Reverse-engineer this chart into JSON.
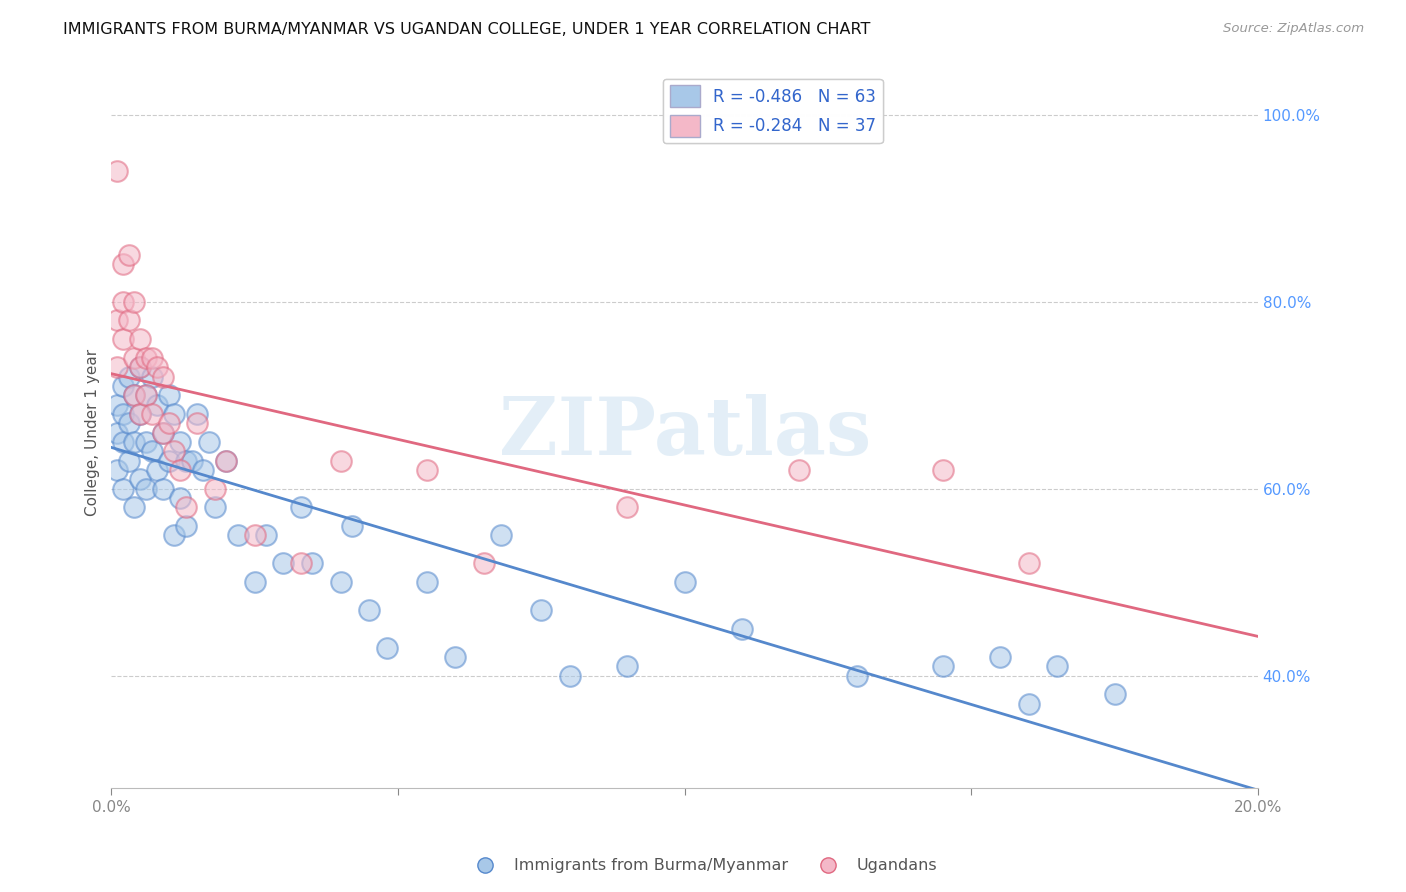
{
  "title": "IMMIGRANTS FROM BURMA/MYANMAR VS UGANDAN COLLEGE, UNDER 1 YEAR CORRELATION CHART",
  "source": "Source: ZipAtlas.com",
  "ylabel": "College, Under 1 year",
  "legend_label1": "Immigrants from Burma/Myanmar",
  "legend_label2": "Ugandans",
  "R1": -0.486,
  "N1": 63,
  "R2": -0.284,
  "N2": 37,
  "color_blue": "#a8c8e8",
  "color_pink": "#f4b8c8",
  "line_blue": "#5588cc",
  "line_pink": "#e06880",
  "xlim": [
    0.0,
    0.2
  ],
  "ylim": [
    0.28,
    1.04
  ],
  "xticks": [
    0.0,
    0.05,
    0.1,
    0.15,
    0.2
  ],
  "xtick_labels": [
    "0.0%",
    "",
    "",
    "",
    "20.0%"
  ],
  "yticks_right": [
    1.0,
    0.8,
    0.6,
    0.4
  ],
  "ytick_labels_right": [
    "100.0%",
    "80.0%",
    "60.0%",
    "40.0%"
  ],
  "blue_x": [
    0.001,
    0.001,
    0.001,
    0.002,
    0.002,
    0.002,
    0.002,
    0.003,
    0.003,
    0.003,
    0.004,
    0.004,
    0.004,
    0.005,
    0.005,
    0.005,
    0.006,
    0.006,
    0.006,
    0.007,
    0.007,
    0.008,
    0.008,
    0.009,
    0.009,
    0.01,
    0.01,
    0.011,
    0.011,
    0.012,
    0.012,
    0.013,
    0.013,
    0.014,
    0.015,
    0.016,
    0.017,
    0.018,
    0.02,
    0.022,
    0.025,
    0.027,
    0.03,
    0.033,
    0.035,
    0.04,
    0.042,
    0.045,
    0.048,
    0.055,
    0.06,
    0.068,
    0.075,
    0.08,
    0.09,
    0.1,
    0.11,
    0.13,
    0.145,
    0.155,
    0.16,
    0.165,
    0.175
  ],
  "blue_y": [
    0.69,
    0.66,
    0.62,
    0.71,
    0.68,
    0.65,
    0.6,
    0.72,
    0.67,
    0.63,
    0.7,
    0.65,
    0.58,
    0.73,
    0.68,
    0.61,
    0.7,
    0.65,
    0.6,
    0.72,
    0.64,
    0.69,
    0.62,
    0.66,
    0.6,
    0.7,
    0.63,
    0.68,
    0.55,
    0.65,
    0.59,
    0.63,
    0.56,
    0.63,
    0.68,
    0.62,
    0.65,
    0.58,
    0.63,
    0.55,
    0.5,
    0.55,
    0.52,
    0.58,
    0.52,
    0.5,
    0.56,
    0.47,
    0.43,
    0.5,
    0.42,
    0.55,
    0.47,
    0.4,
    0.41,
    0.5,
    0.45,
    0.4,
    0.41,
    0.42,
    0.37,
    0.41,
    0.38
  ],
  "pink_x": [
    0.001,
    0.001,
    0.001,
    0.002,
    0.002,
    0.002,
    0.003,
    0.003,
    0.004,
    0.004,
    0.004,
    0.005,
    0.005,
    0.005,
    0.006,
    0.006,
    0.007,
    0.007,
    0.008,
    0.009,
    0.009,
    0.01,
    0.011,
    0.012,
    0.013,
    0.015,
    0.018,
    0.02,
    0.025,
    0.033,
    0.04,
    0.055,
    0.065,
    0.09,
    0.12,
    0.145,
    0.16
  ],
  "pink_y": [
    0.94,
    0.78,
    0.73,
    0.84,
    0.8,
    0.76,
    0.85,
    0.78,
    0.8,
    0.74,
    0.7,
    0.76,
    0.73,
    0.68,
    0.74,
    0.7,
    0.74,
    0.68,
    0.73,
    0.72,
    0.66,
    0.67,
    0.64,
    0.62,
    0.58,
    0.67,
    0.6,
    0.63,
    0.55,
    0.52,
    0.63,
    0.62,
    0.52,
    0.58,
    0.62,
    0.62,
    0.52
  ],
  "watermark": "ZIPatlas",
  "background_color": "#ffffff",
  "grid_color": "#cccccc"
}
